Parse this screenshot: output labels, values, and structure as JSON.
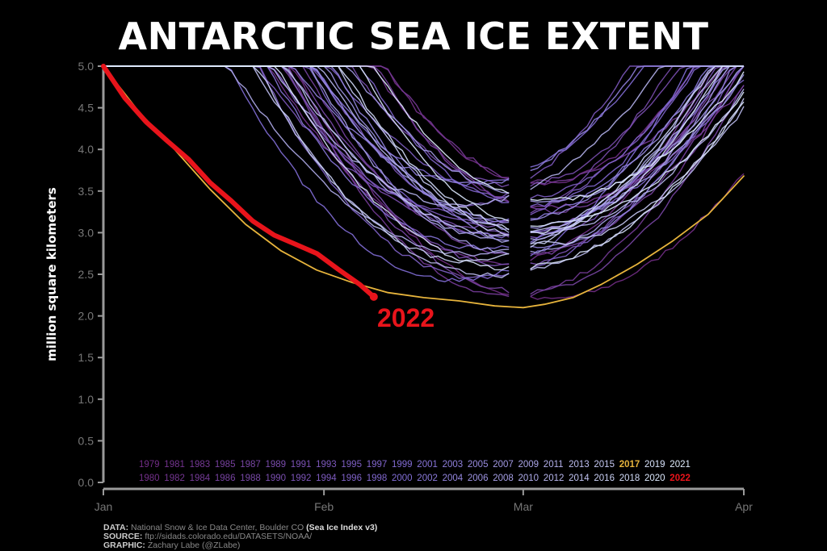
{
  "title": "ANTARCTIC SEA ICE EXTENT",
  "colors": {
    "background": "#000000",
    "highlight_2022": "#e8141b",
    "highlight_2017": "#e7b43c",
    "axis": "#9a9a9a"
  },
  "chart_data": {
    "type": "line",
    "title": "ANTARCTIC SEA ICE EXTENT",
    "ylabel": "million square kilometers",
    "xlabel": "",
    "ylim": [
      0,
      5.0
    ],
    "xlim_days": [
      1,
      91
    ],
    "x_ticks": [
      "Jan",
      "Feb",
      "Mar",
      "Apr"
    ],
    "y_ticks": [
      "0.0",
      "0.5",
      "1.0",
      "1.5",
      "2.0",
      "2.5",
      "3.0",
      "3.5",
      "4.0",
      "4.5",
      "5.0"
    ],
    "grid": false,
    "legend_position": "bottom",
    "legend_years": [
      [
        1979,
        1981,
        1983,
        1985,
        1987,
        1989,
        1991,
        1993,
        1995,
        1997,
        1999,
        2001,
        2003,
        2005,
        2007,
        2009,
        2011,
        2013,
        2015,
        2017,
        2019,
        2021
      ],
      [
        1980,
        1982,
        1984,
        1986,
        1988,
        1990,
        1992,
        1994,
        1996,
        1998,
        2000,
        2002,
        2004,
        2006,
        2008,
        2010,
        2012,
        2014,
        2016,
        2018,
        2020,
        2022
      ]
    ],
    "highlight_series": [
      {
        "name": "2022",
        "color": "#e8141b",
        "x": [
          1,
          4,
          7,
          10,
          13,
          16,
          19,
          22,
          25,
          28,
          31,
          34,
          37,
          39
        ],
        "values": [
          5.0,
          4.62,
          4.33,
          4.1,
          3.88,
          3.6,
          3.38,
          3.14,
          2.97,
          2.86,
          2.75,
          2.56,
          2.38,
          2.23
        ]
      },
      {
        "name": "2017",
        "color": "#e7b43c",
        "x": [
          1,
          6,
          11,
          16,
          21,
          26,
          31,
          36,
          41,
          46,
          51,
          56,
          60,
          63,
          67,
          71,
          76,
          81,
          86,
          91
        ],
        "values": [
          5.0,
          4.45,
          4.0,
          3.52,
          3.1,
          2.78,
          2.55,
          2.4,
          2.28,
          2.22,
          2.18,
          2.12,
          2.1,
          2.14,
          2.22,
          2.38,
          2.62,
          2.9,
          3.22,
          3.68
        ]
      }
    ],
    "other_years_minimum_range": [
      2.2,
      3.7
    ]
  },
  "annotation": {
    "label_2022": "2022"
  },
  "footer": {
    "data_label": "DATA:",
    "data_text": "National Snow & Ice Data Center, Boulder CO",
    "data_highlight": "(Sea Ice Index v3)",
    "source_label": "SOURCE:",
    "source_text": "ftp://sidads.colorado.edu/DATASETS/NOAA/",
    "graphic_label": "GRAPHIC:",
    "graphic_text": "Zachary Labe (@ZLabe)"
  }
}
